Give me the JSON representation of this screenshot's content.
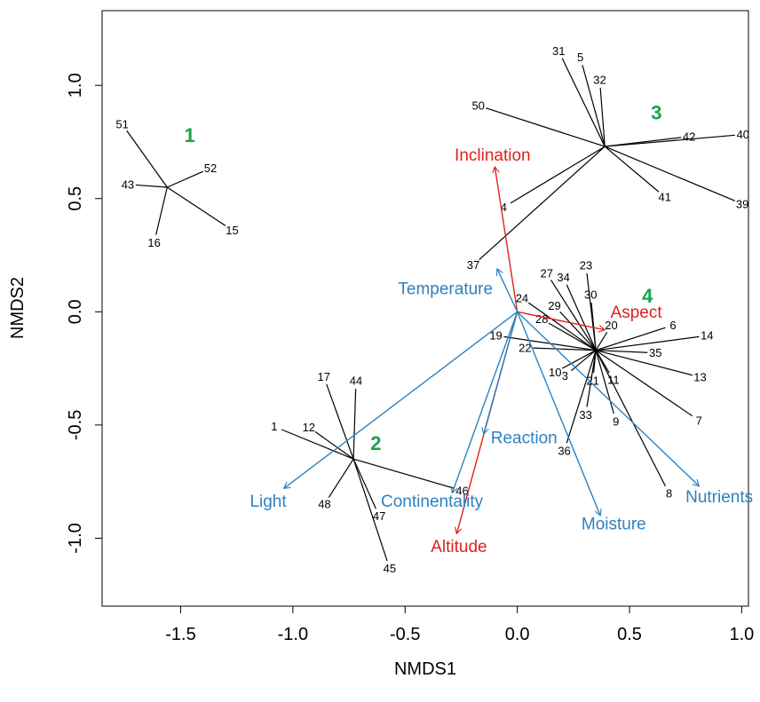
{
  "chart_data": {
    "type": "scatter",
    "subtype": "nmds-spider-ordination",
    "title": "",
    "xlabel": "NMDS1",
    "ylabel": "NMDS2",
    "xlim": [
      -1.85,
      1.03
    ],
    "ylim": [
      -1.3,
      1.33
    ],
    "grid": false,
    "legend": "none",
    "x_ticks": [
      -1.5,
      -1.0,
      -0.5,
      0.0,
      0.5,
      1.0
    ],
    "x_tick_labels": [
      "-1.5",
      "-1.0",
      "-0.5",
      "0.0",
      "0.5",
      "1.0"
    ],
    "y_ticks": [
      -1.0,
      -0.5,
      0.0,
      0.5,
      1.0
    ],
    "y_tick_labels": [
      "-1.0",
      "-0.5",
      "0.0",
      "0.5",
      "1.0"
    ],
    "colors": {
      "sites": "#000000",
      "clusters": "#1aa34a",
      "env_blue": "#2d82c0",
      "env_red": "#e0201b",
      "axis": "#000000"
    },
    "clusters": [
      {
        "label": "1",
        "centroid": [
          -1.56,
          0.55
        ],
        "label_pos": [
          -1.46,
          0.78
        ],
        "sites": [
          {
            "id": "51",
            "x": -1.74,
            "y": 0.8
          },
          {
            "id": "52",
            "x": -1.4,
            "y": 0.62
          },
          {
            "id": "43",
            "x": -1.7,
            "y": 0.56
          },
          {
            "id": "15",
            "x": -1.3,
            "y": 0.38
          },
          {
            "id": "16",
            "x": -1.61,
            "y": 0.34
          }
        ]
      },
      {
        "label": "2",
        "centroid": [
          -0.73,
          -0.65
        ],
        "label_pos": [
          -0.63,
          -0.58
        ],
        "sites": [
          {
            "id": "17",
            "x": -0.85,
            "y": -0.32
          },
          {
            "id": "44",
            "x": -0.72,
            "y": -0.34
          },
          {
            "id": "1",
            "x": -1.05,
            "y": -0.52
          },
          {
            "id": "12",
            "x": -0.9,
            "y": -0.53
          },
          {
            "id": "46",
            "x": -0.28,
            "y": -0.78
          },
          {
            "id": "48",
            "x": -0.84,
            "y": -0.82
          },
          {
            "id": "47",
            "x": -0.63,
            "y": -0.87
          },
          {
            "id": "45",
            "x": -0.58,
            "y": -1.1
          }
        ]
      },
      {
        "label": "3",
        "centroid": [
          0.39,
          0.73
        ],
        "label_pos": [
          0.62,
          0.88
        ],
        "sites": [
          {
            "id": "31",
            "x": 0.2,
            "y": 1.12
          },
          {
            "id": "5",
            "x": 0.29,
            "y": 1.09
          },
          {
            "id": "32",
            "x": 0.37,
            "y": 0.99
          },
          {
            "id": "50",
            "x": -0.14,
            "y": 0.9
          },
          {
            "id": "40",
            "x": 0.97,
            "y": 0.78
          },
          {
            "id": "42",
            "x": 0.73,
            "y": 0.77
          },
          {
            "id": "4",
            "x": -0.03,
            "y": 0.48
          },
          {
            "id": "41",
            "x": 0.63,
            "y": 0.53
          },
          {
            "id": "39",
            "x": 0.97,
            "y": 0.49
          },
          {
            "id": "37",
            "x": -0.17,
            "y": 0.23
          }
        ]
      },
      {
        "label": "4",
        "centroid": [
          0.35,
          -0.17
        ],
        "label_pos": [
          0.58,
          0.07
        ],
        "sites": [
          {
            "id": "27",
            "x": 0.15,
            "y": 0.14
          },
          {
            "id": "23",
            "x": 0.31,
            "y": 0.17
          },
          {
            "id": "34",
            "x": 0.22,
            "y": 0.12
          },
          {
            "id": "30",
            "x": 0.33,
            "y": 0.04
          },
          {
            "id": "24",
            "x": 0.05,
            "y": 0.04
          },
          {
            "id": "29",
            "x": 0.19,
            "y": 0.0
          },
          {
            "id": "28",
            "x": 0.14,
            "y": -0.05
          },
          {
            "id": "20",
            "x": 0.4,
            "y": -0.09
          },
          {
            "id": "6",
            "x": 0.66,
            "y": -0.07
          },
          {
            "id": "19",
            "x": -0.06,
            "y": -0.11
          },
          {
            "id": "14",
            "x": 0.81,
            "y": -0.11
          },
          {
            "id": "22",
            "x": 0.07,
            "y": -0.16
          },
          {
            "id": "35",
            "x": 0.58,
            "y": -0.18
          },
          {
            "id": "10",
            "x": 0.2,
            "y": -0.25
          },
          {
            "id": "3",
            "x": 0.24,
            "y": -0.26
          },
          {
            "id": "21",
            "x": 0.34,
            "y": -0.27
          },
          {
            "id": "11",
            "x": 0.41,
            "y": -0.27
          },
          {
            "id": "13",
            "x": 0.78,
            "y": -0.28
          },
          {
            "id": "33",
            "x": 0.31,
            "y": -0.42
          },
          {
            "id": "9",
            "x": 0.43,
            "y": -0.45
          },
          {
            "id": "7",
            "x": 0.78,
            "y": -0.46
          },
          {
            "id": "36",
            "x": 0.22,
            "y": -0.58
          },
          {
            "id": "8",
            "x": 0.66,
            "y": -0.77
          }
        ]
      }
    ],
    "env_vectors": [
      {
        "name": "Inclination",
        "color": "red",
        "x": -0.1,
        "y": 0.64,
        "label_pos": [
          -0.11,
          0.69
        ]
      },
      {
        "name": "Aspect",
        "color": "red",
        "x": 0.39,
        "y": -0.08,
        "label_pos": [
          0.53,
          -0.004
        ]
      },
      {
        "name": "Altitude",
        "color": "red",
        "x": -0.27,
        "y": -0.98,
        "label_pos": [
          -0.26,
          -1.04
        ]
      },
      {
        "name": "Temperature",
        "color": "blue",
        "x": -0.09,
        "y": 0.19,
        "label_pos": [
          -0.32,
          0.1
        ]
      },
      {
        "name": "Light",
        "color": "blue",
        "x": -1.04,
        "y": -0.78,
        "label_pos": [
          -1.11,
          -0.84
        ]
      },
      {
        "name": "Continentality",
        "color": "blue",
        "x": -0.29,
        "y": -0.8,
        "label_pos": [
          -0.38,
          -0.84
        ]
      },
      {
        "name": "Reaction",
        "color": "blue",
        "x": -0.15,
        "y": -0.54,
        "label_pos": [
          0.03,
          -0.56
        ]
      },
      {
        "name": "Moisture",
        "color": "blue",
        "x": 0.37,
        "y": -0.9,
        "label_pos": [
          0.43,
          -0.94
        ]
      },
      {
        "name": "Nutrients",
        "color": "blue",
        "x": 0.81,
        "y": -0.77,
        "label_pos": [
          0.9,
          -0.82
        ]
      }
    ]
  }
}
